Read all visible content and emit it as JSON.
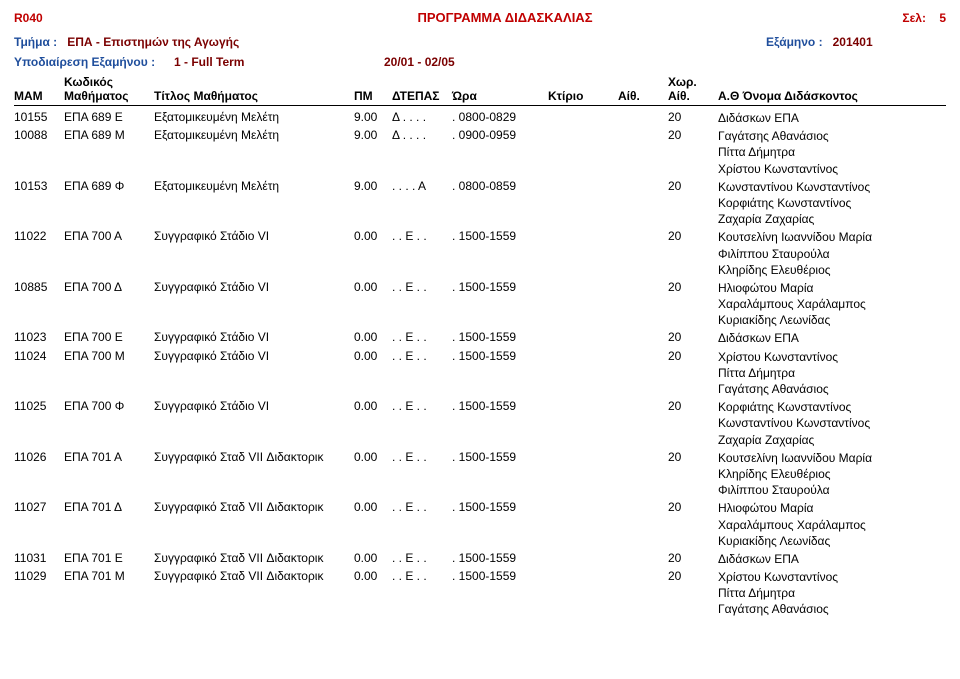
{
  "report_code": "R040",
  "report_title": "ΠΡΟΓΡΑΜΜΑ ΔΙΔΑΣΚΑΛΙΑΣ",
  "page_label": "Σελ:",
  "page_number": "5",
  "dept_label": "Τμήμα :",
  "dept_value": "ΕΠΑ - Επιστημών της Αγωγής",
  "semester_label": "Εξάμηνο :",
  "semester_value": "201401",
  "subdiv_label": "Υποδιαίρεση Εξαμήνου :",
  "subdiv_value": "1 - Full Term",
  "date_range": "20/01 - 02/05",
  "headers": {
    "kodikos": "Κωδικός",
    "mam": "MAM",
    "course": "Μαθήματος",
    "title": "Τίτλος Μαθήματος",
    "pm": "ΠΜ",
    "dtepas": "ΔΤΕΠΑΣ",
    "hour": "Ώρα",
    "bldg": "Κτίριο",
    "room": "Αίθ.",
    "cap_top": "Χωρ.",
    "cap": "Αίθ.",
    "instructor": "Α.Θ  Όνομα Διδάσκοντος"
  },
  "rows": [
    {
      "mam": "10155",
      "code": "ΕΠΑ 689  Ε",
      "title": "Εξατομικευμένη Μελέτη",
      "pm": "9.00",
      "dt": "Δ . . . .",
      "hour": ". 0800-0829",
      "bldg": "",
      "room": "",
      "cap": "20",
      "instr": [
        "Διδάσκων ΕΠΑ"
      ]
    },
    {
      "mam": "10088",
      "code": "ΕΠΑ 689  Μ",
      "title": "Εξατομικευμένη Μελέτη",
      "pm": "9.00",
      "dt": "Δ . . . .",
      "hour": ". 0900-0959",
      "bldg": "",
      "room": "",
      "cap": "20",
      "instr": [
        "Γαγάτσης Αθανάσιος",
        "Πίττα Δήμητρα",
        "Χρίστου Κωνσταντίνος"
      ]
    },
    {
      "mam": "10153",
      "code": "ΕΠΑ 689  Φ",
      "title": "Εξατομικευμένη Μελέτη",
      "pm": "9.00",
      "dt": ". . . . Α",
      "hour": ". 0800-0859",
      "bldg": "",
      "room": "",
      "cap": "20",
      "instr": [
        "Κωνσταντίνου Κωνσταντίνος",
        "Κορφιάτης Κωνσταντίνος",
        "Ζαχαρία Ζαχαρίας"
      ]
    },
    {
      "mam": "11022",
      "code": "ΕΠΑ 700  Α",
      "title": "Συγγραφικό Στάδιο VI",
      "pm": "0.00",
      "dt": ". . Ε . .",
      "hour": ". 1500-1559",
      "bldg": "",
      "room": "",
      "cap": "20",
      "instr": [
        "Κουτσελίνη Ιωαννίδου Μαρία",
        "Φιλίππου Σταυρούλα",
        "Κληρίδης Ελευθέριος"
      ]
    },
    {
      "mam": "10885",
      "code": "ΕΠΑ 700  Δ",
      "title": "Συγγραφικό Στάδιο VI",
      "pm": "0.00",
      "dt": ". . Ε . .",
      "hour": ". 1500-1559",
      "bldg": "",
      "room": "",
      "cap": "20",
      "instr": [
        "Ηλιοφώτου Μαρία",
        "Χαραλάμπους Χαράλαμπος",
        "Κυριακίδης Λεωνίδας"
      ]
    },
    {
      "mam": "11023",
      "code": "ΕΠΑ 700  Ε",
      "title": "Συγγραφικό Στάδιο VI",
      "pm": "0.00",
      "dt": ". . Ε . .",
      "hour": ". 1500-1559",
      "bldg": "",
      "room": "",
      "cap": "20",
      "instr": [
        "Διδάσκων ΕΠΑ"
      ]
    },
    {
      "mam": "11024",
      "code": "ΕΠΑ 700  Μ",
      "title": "Συγγραφικό Στάδιο VI",
      "pm": "0.00",
      "dt": ". . Ε . .",
      "hour": ". 1500-1559",
      "bldg": "",
      "room": "",
      "cap": "20",
      "instr": [
        "Χρίστου Κωνσταντίνος",
        "Πίττα Δήμητρα",
        "Γαγάτσης Αθανάσιος"
      ]
    },
    {
      "mam": "11025",
      "code": "ΕΠΑ 700  Φ",
      "title": "Συγγραφικό Στάδιο VI",
      "pm": "0.00",
      "dt": ". . Ε . .",
      "hour": ". 1500-1559",
      "bldg": "",
      "room": "",
      "cap": "20",
      "instr": [
        "Κορφιάτης Κωνσταντίνος",
        "Κωνσταντίνου Κωνσταντίνος",
        "Ζαχαρία Ζαχαρίας"
      ]
    },
    {
      "mam": "11026",
      "code": "ΕΠΑ 701  Α",
      "title": "Συγγραφικό Σταδ VII Διδακτορικ",
      "pm": "0.00",
      "dt": ". . Ε . .",
      "hour": ". 1500-1559",
      "bldg": "",
      "room": "",
      "cap": "20",
      "instr": [
        "Κουτσελίνη Ιωαννίδου Μαρία",
        "Κληρίδης Ελευθέριος",
        "Φιλίππου Σταυρούλα"
      ]
    },
    {
      "mam": "11027",
      "code": "ΕΠΑ 701  Δ",
      "title": "Συγγραφικό Σταδ VII Διδακτορικ",
      "pm": "0.00",
      "dt": ". . Ε . .",
      "hour": ". 1500-1559",
      "bldg": "",
      "room": "",
      "cap": "20",
      "instr": [
        "Ηλιοφώτου Μαρία",
        "Χαραλάμπους Χαράλαμπος",
        "Κυριακίδης Λεωνίδας"
      ]
    },
    {
      "mam": "11031",
      "code": "ΕΠΑ 701  Ε",
      "title": "Συγγραφικό Σταδ VII Διδακτορικ",
      "pm": "0.00",
      "dt": ". . Ε . .",
      "hour": ". 1500-1559",
      "bldg": "",
      "room": "",
      "cap": "20",
      "instr": [
        "Διδάσκων ΕΠΑ"
      ]
    },
    {
      "mam": "11029",
      "code": "ΕΠΑ 701  Μ",
      "title": "Συγγραφικό Σταδ VII Διδακτορικ",
      "pm": "0.00",
      "dt": ". . Ε . .",
      "hour": ". 1500-1559",
      "bldg": "",
      "room": "",
      "cap": "20",
      "instr": [
        "Χρίστου Κωνσταντίνος",
        "Πίττα Δήμητρα",
        "Γαγάτσης Αθανάσιος"
      ]
    }
  ],
  "colors": {
    "red": "#c00000",
    "blue": "#1f4e9c",
    "darkred": "#7a0000",
    "text": "#000000"
  }
}
